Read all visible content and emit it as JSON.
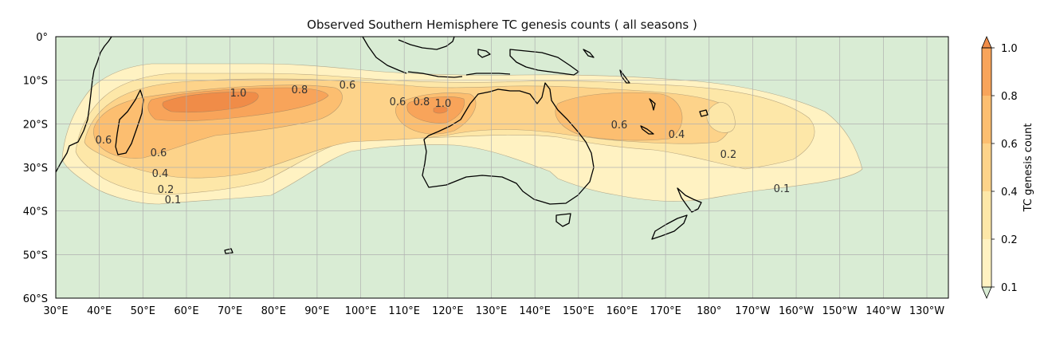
{
  "title": "Observed Southern Hemisphere TC genesis counts ( all seasons )",
  "colorbar": {
    "label": "TC genesis count",
    "ticks": [
      "0.1",
      "0.2",
      "0.4",
      "0.6",
      "0.8",
      "1.0"
    ]
  },
  "axes": {
    "lon_labels": [
      "30°E",
      "40°E",
      "50°E",
      "60°E",
      "70°E",
      "80°E",
      "90°E",
      "100°E",
      "110°E",
      "120°E",
      "130°E",
      "140°E",
      "150°E",
      "160°E",
      "170°E",
      "180°",
      "170°W",
      "160°W",
      "150°W",
      "140°W",
      "130°W"
    ],
    "lat_labels": [
      "0°",
      "10°S",
      "20°S",
      "30°S",
      "40°S",
      "50°S",
      "60°S"
    ]
  },
  "contour_labels": [
    "0.6",
    "1.0",
    "0.8",
    "0.6",
    "0.6",
    "0.8",
    "1.0",
    "0.6",
    "0.4",
    "0.6",
    "0.4",
    "0.2",
    "0.1",
    "0.2",
    "0.1"
  ],
  "colors": {
    "ocean": "#d9ecd4",
    "level_0_1": "#fff2c2",
    "level_0_2": "#fde7a8",
    "level_0_4": "#fdd38a",
    "level_0_6": "#fcbe70",
    "level_0_8": "#f8a45a",
    "level_1_0": "#f08c48",
    "coast": "#000000",
    "grid": "#b0b0b0"
  }
}
